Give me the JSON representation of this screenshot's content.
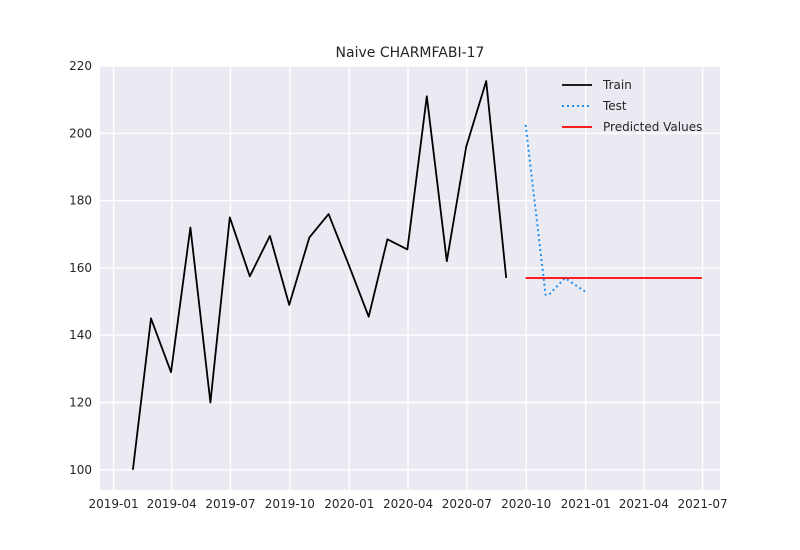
{
  "chart_data": {
    "type": "line",
    "title": "Naive CHARMFABI-17",
    "xlabel": "",
    "ylabel": "",
    "x_axis": "date",
    "xlim": [
      "2018-12-11",
      "2021-07-28"
    ],
    "ylim": [
      94,
      220
    ],
    "x_ticks": [
      "2019-01",
      "2019-04",
      "2019-07",
      "2019-10",
      "2020-01",
      "2020-04",
      "2020-07",
      "2020-10",
      "2021-01",
      "2021-04",
      "2021-07"
    ],
    "y_ticks": [
      100,
      120,
      140,
      160,
      180,
      200,
      220
    ],
    "grid": true,
    "legend": "top-right",
    "series": [
      {
        "name": "Train",
        "color": "#000000",
        "style": "solid",
        "x": [
          "2019-01-31",
          "2019-02-28",
          "2019-03-31",
          "2019-04-30",
          "2019-05-31",
          "2019-06-30",
          "2019-07-31",
          "2019-08-31",
          "2019-09-30",
          "2019-10-31",
          "2019-11-30",
          "2019-12-31",
          "2020-01-31",
          "2020-02-29",
          "2020-03-31",
          "2020-04-30",
          "2020-05-31",
          "2020-06-30",
          "2020-07-31",
          "2020-08-31"
        ],
        "y": [
          100,
          145,
          129,
          172,
          120,
          175,
          157.5,
          169.5,
          149,
          169,
          176,
          161,
          145.5,
          168.5,
          165.5,
          211,
          162,
          196,
          215.5,
          157
        ]
      },
      {
        "name": "Test",
        "color": "#1f8ff0",
        "style": "dotted",
        "x": [
          "2020-09-30",
          "2020-10-31",
          "2020-11-05",
          "2020-11-30",
          "2020-12-31"
        ],
        "y": [
          202.5,
          152,
          152,
          157,
          153
        ]
      },
      {
        "name": "Predicted Values",
        "color": "#ff0000",
        "style": "solid",
        "x": [
          "2020-09-30",
          "2021-06-30"
        ],
        "y": [
          157,
          157
        ]
      }
    ]
  }
}
